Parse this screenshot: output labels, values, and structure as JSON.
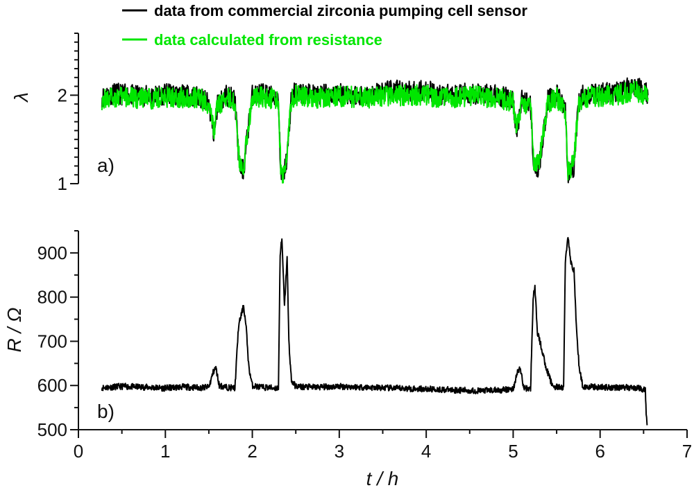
{
  "chart_data": [
    {
      "type": "line",
      "panel_label": "a)",
      "ylabel": "λ",
      "ylim": [
        1,
        2.7
      ],
      "yticks": [
        1,
        2
      ],
      "xlim": [
        0,
        7
      ],
      "legend_placement": "top",
      "series": [
        {
          "name": "data from commercial zirconia pumping cell sensor",
          "color": "#000000",
          "x": [
            0.27,
            0.4,
            0.6,
            0.8,
            1.0,
            1.2,
            1.4,
            1.5,
            1.56,
            1.6,
            1.7,
            1.8,
            1.85,
            1.9,
            1.95,
            2.0,
            2.1,
            2.2,
            2.3,
            2.33,
            2.36,
            2.4,
            2.45,
            2.5,
            2.7,
            3.0,
            3.3,
            3.6,
            4.0,
            4.2,
            4.5,
            4.8,
            5.0,
            5.04,
            5.1,
            5.2,
            5.24,
            5.3,
            5.4,
            5.5,
            5.6,
            5.63,
            5.7,
            5.75,
            5.8,
            6.0,
            6.2,
            6.4,
            6.5,
            6.55
          ],
          "y": [
            1.98,
            2.02,
            2.0,
            1.99,
            2.01,
            2.0,
            1.98,
            1.9,
            1.55,
            1.9,
            2.0,
            1.95,
            1.2,
            1.15,
            1.6,
            2.0,
            2.02,
            2.0,
            1.95,
            1.05,
            1.1,
            1.3,
            2.0,
            2.03,
            2.0,
            2.02,
            2.0,
            2.05,
            2.05,
            2.0,
            2.02,
            2.0,
            1.95,
            1.55,
            1.95,
            1.9,
            1.15,
            1.2,
            1.95,
            2.0,
            1.85,
            1.1,
            1.2,
            1.9,
            2.0,
            2.02,
            2.05,
            2.1,
            2.05,
            2.0
          ]
        },
        {
          "name": "data calculated from resistance",
          "color": "#00e600",
          "x": [
            0.27,
            0.4,
            0.6,
            0.8,
            1.0,
            1.2,
            1.4,
            1.5,
            1.56,
            1.6,
            1.7,
            1.8,
            1.85,
            1.9,
            1.95,
            2.0,
            2.1,
            2.2,
            2.3,
            2.33,
            2.36,
            2.4,
            2.45,
            2.5,
            2.7,
            3.0,
            3.3,
            3.6,
            4.0,
            4.2,
            4.5,
            4.8,
            5.0,
            5.04,
            5.1,
            5.2,
            5.24,
            5.3,
            5.4,
            5.5,
            5.6,
            5.63,
            5.7,
            5.75,
            5.8,
            6.0,
            6.2,
            6.4,
            6.5,
            6.55
          ],
          "y": [
            1.95,
            1.98,
            1.97,
            1.96,
            1.98,
            1.97,
            1.96,
            1.88,
            1.6,
            1.88,
            1.97,
            1.92,
            1.25,
            1.2,
            1.62,
            1.97,
            1.98,
            1.97,
            1.93,
            1.1,
            1.12,
            1.35,
            1.97,
            2.0,
            1.97,
            1.99,
            1.97,
            2.0,
            2.0,
            1.97,
            1.99,
            1.97,
            1.93,
            1.6,
            1.92,
            1.88,
            1.2,
            1.25,
            1.92,
            1.97,
            1.82,
            1.12,
            1.25,
            1.88,
            1.97,
            1.99,
            2.0,
            2.05,
            2.0,
            1.97
          ]
        }
      ]
    },
    {
      "type": "line",
      "panel_label": "b)",
      "ylabel": "R / Ω",
      "xlabel": "t / h",
      "ylim": [
        500,
        950
      ],
      "yticks": [
        500,
        600,
        700,
        800,
        900
      ],
      "xlim": [
        0,
        7
      ],
      "xticks": [
        0,
        1,
        2,
        3,
        4,
        5,
        6,
        7
      ],
      "series": [
        {
          "color": "#000000",
          "x": [
            0.27,
            0.5,
            0.8,
            1.0,
            1.2,
            1.4,
            1.5,
            1.55,
            1.58,
            1.62,
            1.7,
            1.8,
            1.84,
            1.86,
            1.9,
            1.93,
            1.96,
            2.0,
            2.1,
            2.2,
            2.3,
            2.32,
            2.34,
            2.37,
            2.4,
            2.42,
            2.45,
            2.5,
            2.7,
            3.0,
            3.3,
            3.6,
            4.0,
            4.3,
            4.6,
            4.9,
            5.0,
            5.05,
            5.08,
            5.12,
            5.2,
            5.23,
            5.25,
            5.28,
            5.32,
            5.38,
            5.45,
            5.5,
            5.58,
            5.6,
            5.63,
            5.66,
            5.7,
            5.73,
            5.76,
            5.8,
            6.0,
            6.2,
            6.4,
            6.5,
            6.52,
            6.53,
            6.54
          ],
          "y": [
            595,
            598,
            596,
            594,
            597,
            595,
            596,
            630,
            640,
            600,
            596,
            594,
            730,
            750,
            780,
            730,
            640,
            600,
            596,
            595,
            594,
            900,
            930,
            780,
            890,
            700,
            610,
            598,
            596,
            598,
            596,
            594,
            592,
            590,
            588,
            590,
            592,
            630,
            640,
            595,
            592,
            800,
            820,
            720,
            690,
            640,
            600,
            596,
            595,
            880,
            940,
            880,
            860,
            720,
            640,
            598,
            596,
            596,
            595,
            592,
            588,
            540,
            510
          ]
        }
      ]
    }
  ]
}
